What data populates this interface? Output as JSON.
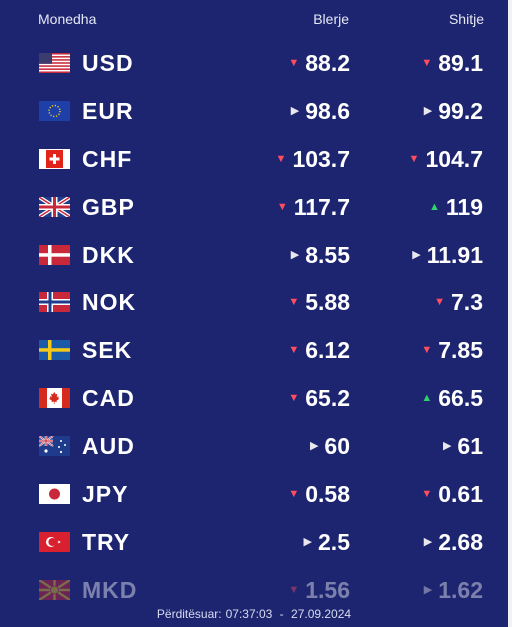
{
  "header": {
    "currency": "Monedha",
    "buy": "Blerje",
    "sell": "Shitje"
  },
  "rows": [
    {
      "code": "USD",
      "flag": "us-flag-icon",
      "buy": "88.2",
      "buy_trend": "down",
      "sell": "89.1",
      "sell_trend": "down"
    },
    {
      "code": "EUR",
      "flag": "eu-flag-icon",
      "buy": "98.6",
      "buy_trend": "flat",
      "sell": "99.2",
      "sell_trend": "flat"
    },
    {
      "code": "CHF",
      "flag": "ch-flag-icon",
      "buy": "103.7",
      "buy_trend": "down",
      "sell": "104.7",
      "sell_trend": "down"
    },
    {
      "code": "GBP",
      "flag": "gb-flag-icon",
      "buy": "117.7",
      "buy_trend": "down",
      "sell": "119",
      "sell_trend": "up"
    },
    {
      "code": "DKK",
      "flag": "dk-flag-icon",
      "buy": "8.55",
      "buy_trend": "flat",
      "sell": "11.91",
      "sell_trend": "flat"
    },
    {
      "code": "NOK",
      "flag": "no-flag-icon",
      "buy": "5.88",
      "buy_trend": "down",
      "sell": "7.3",
      "sell_trend": "down"
    },
    {
      "code": "SEK",
      "flag": "se-flag-icon",
      "buy": "6.12",
      "buy_trend": "down",
      "sell": "7.85",
      "sell_trend": "down"
    },
    {
      "code": "CAD",
      "flag": "ca-flag-icon",
      "buy": "65.2",
      "buy_trend": "down",
      "sell": "66.5",
      "sell_trend": "up"
    },
    {
      "code": "AUD",
      "flag": "au-flag-icon",
      "buy": "60",
      "buy_trend": "flat",
      "sell": "61",
      "sell_trend": "flat"
    },
    {
      "code": "JPY",
      "flag": "jp-flag-icon",
      "buy": "0.58",
      "buy_trend": "down",
      "sell": "0.61",
      "sell_trend": "down"
    },
    {
      "code": "TRY",
      "flag": "tr-flag-icon",
      "buy": "2.5",
      "buy_trend": "flat",
      "sell": "2.68",
      "sell_trend": "flat"
    },
    {
      "code": "MKD",
      "flag": "mk-flag-icon",
      "buy": "1.56",
      "buy_trend": "down",
      "sell": "1.62",
      "sell_trend": "flat"
    }
  ],
  "footer": {
    "label": "Përditësuar:",
    "time": "07:37:03",
    "separator": "-",
    "date": "27.09.2024"
  },
  "colors": {
    "background": "#1d2570",
    "down": "#ff4d5e",
    "up": "#2fd36b",
    "flat": "#e8e8ee"
  }
}
